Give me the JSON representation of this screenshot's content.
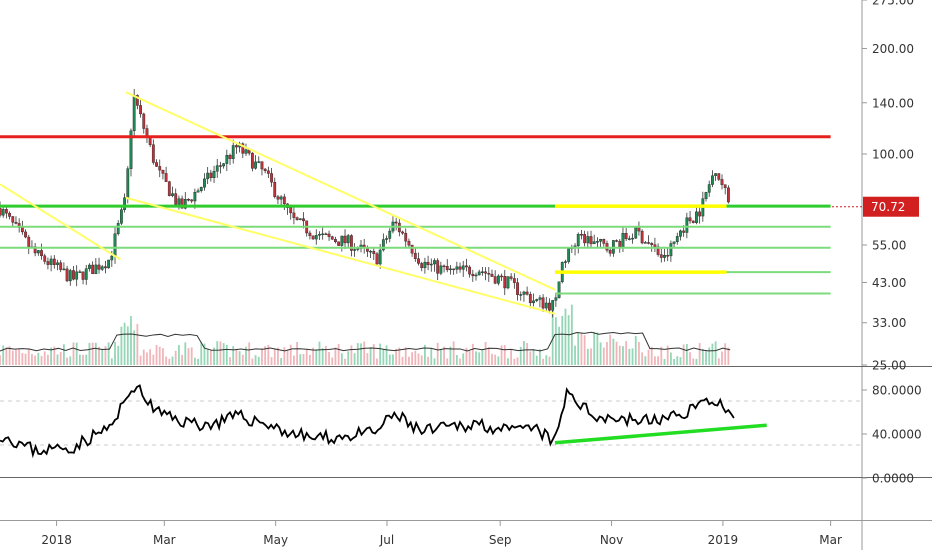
{
  "chart_data": [
    {
      "type": "candlestick",
      "panel": "price",
      "y_scale": "log",
      "ylim": [
        25,
        275
      ],
      "y_ticks": [
        "275.00",
        "200.00",
        "140.00",
        "100.00",
        "70.72",
        "55.00",
        "43.00",
        "33.00",
        "25.00"
      ],
      "x_ticks": [
        "2018",
        "Mar",
        "May",
        "Jul",
        "Sep",
        "Nov",
        "2019",
        "Mar"
      ],
      "last_price": "70.72",
      "x_range": [
        "2017-12-01",
        "2019-03-31"
      ],
      "approx_price_path": {
        "x": [
          "2017-12-01",
          "2017-12-20",
          "2018-01-10",
          "2018-01-30",
          "2018-02-08",
          "2018-02-12",
          "2018-02-25",
          "2018-03-10",
          "2018-03-25",
          "2018-04-10",
          "2018-04-25",
          "2018-05-10",
          "2018-05-25",
          "2018-06-10",
          "2018-06-25",
          "2018-07-05",
          "2018-07-20",
          "2018-08-05",
          "2018-08-20",
          "2018-09-05",
          "2018-09-20",
          "2018-10-01",
          "2018-10-05",
          "2018-10-15",
          "2018-10-30",
          "2018-11-15",
          "2018-11-30",
          "2018-12-10",
          "2018-12-20",
          "2018-12-28",
          "2019-01-05"
        ],
        "y": [
          70,
          52,
          44,
          50,
          75,
          148,
          90,
          70,
          85,
          105,
          88,
          65,
          58,
          56,
          50,
          64,
          49,
          46,
          47,
          43,
          38,
          37,
          49,
          58,
          54,
          60,
          50,
          62,
          70,
          92,
          71
        ]
      },
      "volume_shown": true,
      "annotations": [
        {
          "type": "hline",
          "color": "#e5201e",
          "y": 112,
          "x_from": "2017-12-01",
          "x_to": "2019-03-01"
        },
        {
          "type": "hline",
          "color": "#2ecc2e",
          "y": 71,
          "x_from": "2017-12-01",
          "x_to": "2019-03-01"
        },
        {
          "type": "hline",
          "color": "#7cdc7c",
          "y": 62,
          "x_from": "2017-12-01",
          "x_to": "2019-03-01"
        },
        {
          "type": "hline",
          "color": "#7cdc7c",
          "y": 54,
          "x_from": "2017-12-01",
          "x_to": "2019-03-01"
        },
        {
          "type": "hline",
          "color": "#7cdc7c",
          "y": 46,
          "x_from": "2018-10-01",
          "x_to": "2019-03-01"
        },
        {
          "type": "hline",
          "color": "#7cdc7c",
          "y": 40,
          "x_from": "2018-10-01",
          "x_to": "2019-03-01"
        },
        {
          "type": "segment",
          "color": "#ffff00",
          "points": [
            [
              "2018-10-01",
              71
            ],
            [
              "2019-01-03",
              71
            ]
          ]
        },
        {
          "type": "segment",
          "color": "#ffff00",
          "points": [
            [
              "2018-10-01",
              46
            ],
            [
              "2019-01-03",
              46
            ]
          ]
        },
        {
          "type": "segment",
          "color": "#ffff66",
          "points": [
            [
              "2018-02-08",
              150
            ],
            [
              "2018-10-01",
              41
            ]
          ]
        },
        {
          "type": "segment",
          "color": "#ffff66",
          "points": [
            [
              "2018-02-08",
              75
            ],
            [
              "2018-10-01",
              35
            ]
          ]
        },
        {
          "type": "segment",
          "color": "#ffff66",
          "points": [
            [
              "2017-12-01",
              82
            ],
            [
              "2018-02-05",
              50
            ]
          ]
        }
      ]
    },
    {
      "type": "line",
      "panel": "oscillator",
      "ylim": [
        0,
        100
      ],
      "y_ticks": [
        "80.0000",
        "40.0000",
        "0.0000"
      ],
      "dashed_levels": [
        70,
        30
      ],
      "x": [
        "2017-12-01",
        "2017-12-20",
        "2018-01-10",
        "2018-02-01",
        "2018-02-12",
        "2018-02-25",
        "2018-03-10",
        "2018-03-25",
        "2018-04-10",
        "2018-04-25",
        "2018-05-10",
        "2018-05-25",
        "2018-06-10",
        "2018-06-25",
        "2018-07-05",
        "2018-07-20",
        "2018-08-05",
        "2018-08-20",
        "2018-09-05",
        "2018-09-20",
        "2018-10-01",
        "2018-10-08",
        "2018-10-20",
        "2018-11-05",
        "2018-11-20",
        "2018-12-05",
        "2018-12-20",
        "2018-12-28",
        "2019-01-08"
      ],
      "values": [
        40,
        25,
        28,
        48,
        85,
        60,
        52,
        48,
        56,
        50,
        40,
        36,
        38,
        42,
        58,
        42,
        46,
        50,
        42,
        45,
        32,
        80,
        58,
        54,
        52,
        55,
        68,
        72,
        48
      ],
      "annotations": [
        {
          "type": "segment",
          "color": "#22dd22",
          "points": [
            [
              "2018-10-01",
              32
            ],
            [
              "2019-01-25",
              48
            ]
          ]
        }
      ]
    }
  ]
}
